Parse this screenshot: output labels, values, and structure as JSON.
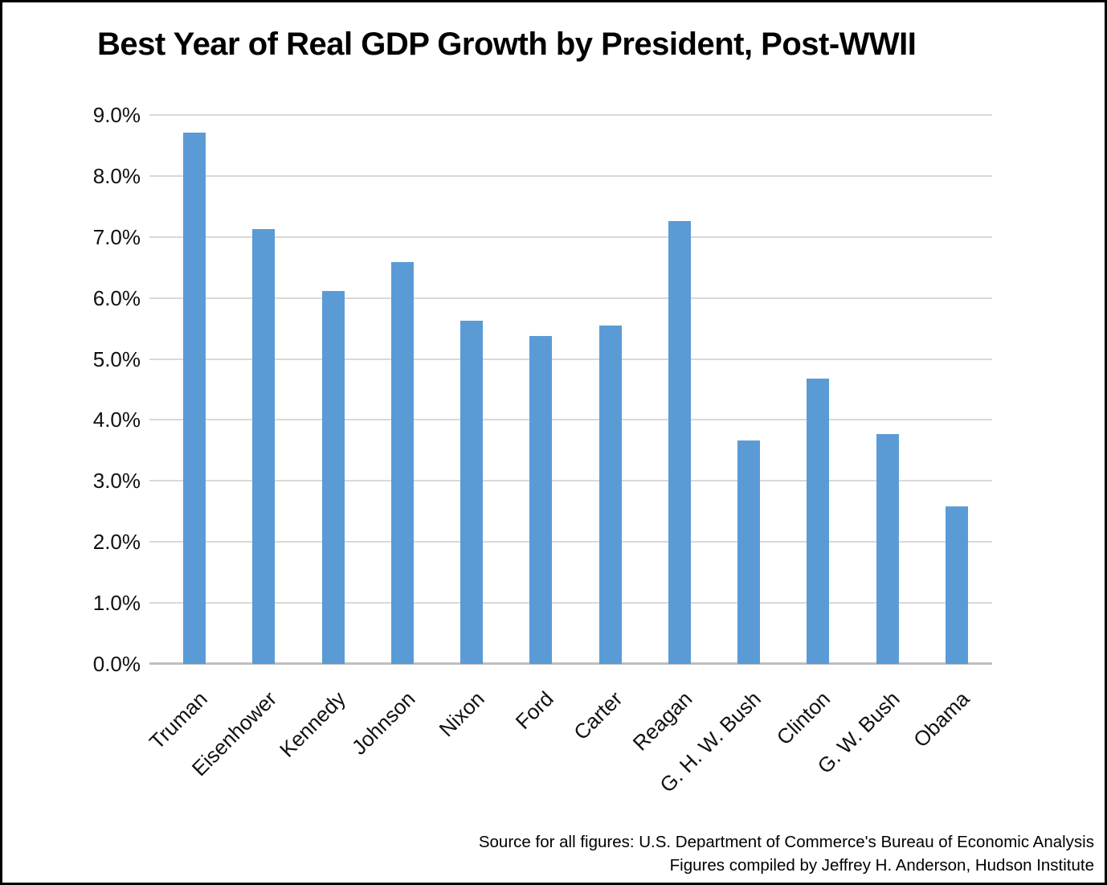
{
  "chart_data": {
    "type": "bar",
    "title": "Best Year of Real GDP Growth by President, Post-WWII",
    "categories": [
      "Truman",
      "Eisenhower",
      "Kennedy",
      "Johnson",
      "Nixon",
      "Ford",
      "Carter",
      "Reagan",
      "G. H. W. Bush",
      "Clinton",
      "G. W. Bush",
      "Obama"
    ],
    "values": [
      8.71,
      7.13,
      6.12,
      6.59,
      5.63,
      5.38,
      5.55,
      7.26,
      3.66,
      4.68,
      3.77,
      2.58
    ],
    "value_unit": "percent real GDP growth",
    "xlabel": "",
    "ylabel": "",
    "ylim": [
      0,
      9
    ],
    "y_ticks": [
      "9.0%",
      "8.0%",
      "7.0%",
      "6.0%",
      "5.0%",
      "4.0%",
      "3.0%",
      "2.0%",
      "1.0%",
      "0.0%"
    ],
    "y_tick_values": [
      9,
      8,
      7,
      6,
      5,
      4,
      3,
      2,
      1,
      0
    ],
    "grid": "horizontal",
    "legend": "none",
    "colors": {
      "bar": "#5B9BD5",
      "gridline": "#D9D9D9",
      "axis_line": "#BFBFBF",
      "text": "#111111",
      "title": "#000000"
    }
  },
  "source": {
    "line1": "Source for all figures: U.S. Department of Commerce's Bureau of Economic Analysis",
    "line2": "Figures compiled by Jeffrey H. Anderson, Hudson Institute"
  }
}
